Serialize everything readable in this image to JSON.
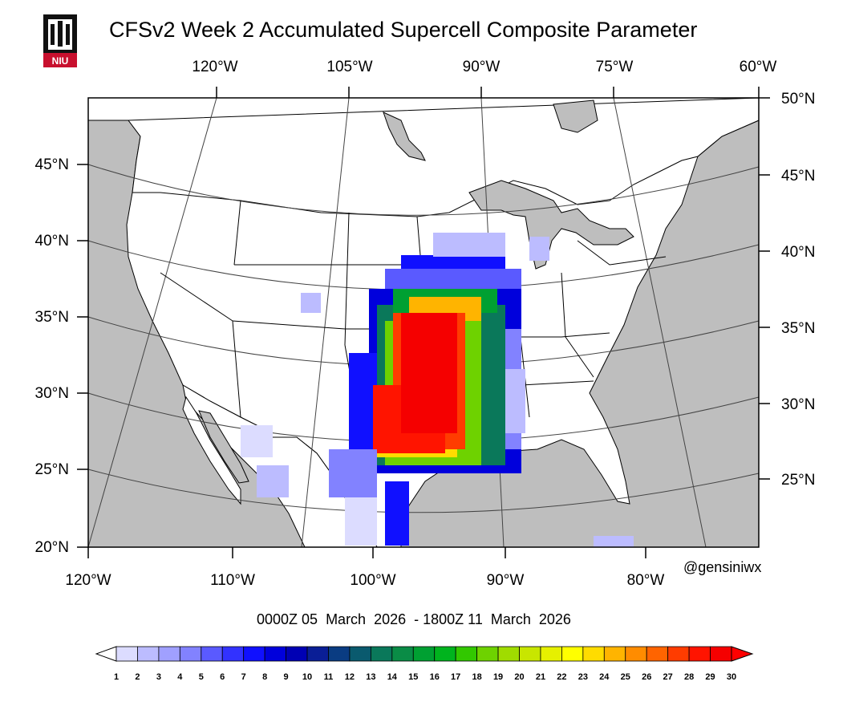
{
  "title": "CFSv2 Week 2 Accumulated Supercell Composite Parameter",
  "logo": {
    "text": "NIU",
    "color": "#c8102e"
  },
  "top_lon_labels": [
    "120°W",
    "105°W",
    "90°W",
    "75°W",
    "60°W"
  ],
  "right_lat_labels": [
    "50°N",
    "45°N",
    "40°N",
    "35°N",
    "30°N",
    "25°N"
  ],
  "left_lat_labels": [
    "45°N",
    "40°N",
    "35°N",
    "30°N",
    "25°N",
    "20°N"
  ],
  "bottom_lon_labels": [
    "120°W",
    "110°W",
    "100°W",
    "90°W",
    "80°W"
  ],
  "credit": "@gensiniwx",
  "date_range": "0000Z 05  March  2026  - 1800Z 11  March  2026",
  "colorbar": {
    "labels": [
      "1",
      "2",
      "3",
      "4",
      "5",
      "6",
      "7",
      "8",
      "9",
      "10",
      "11",
      "12",
      "13",
      "14",
      "15",
      "16",
      "17",
      "18",
      "19",
      "20",
      "21",
      "22",
      "23",
      "24",
      "25",
      "26",
      "27",
      "28",
      "29",
      "30"
    ],
    "colors": [
      "#dcdcff",
      "#bcbcff",
      "#a0a0ff",
      "#8282ff",
      "#5a5aff",
      "#3232ff",
      "#1010ff",
      "#0000dc",
      "#0000b4",
      "#0a1e96",
      "#0a3c82",
      "#0a5a6e",
      "#0a785a",
      "#0a8c46",
      "#00a032",
      "#00b41e",
      "#32c800",
      "#6ed200",
      "#a0dc00",
      "#c8e600",
      "#e6f000",
      "#ffff00",
      "#ffdc00",
      "#ffb400",
      "#ff8c00",
      "#ff6400",
      "#ff3c00",
      "#ff1400",
      "#f50000"
    ],
    "over_color": "#ff0000",
    "under_color": "#ffffff"
  },
  "map_colors": {
    "land": "#ffffff",
    "ocean": "#bebebe",
    "border": "#000000"
  }
}
